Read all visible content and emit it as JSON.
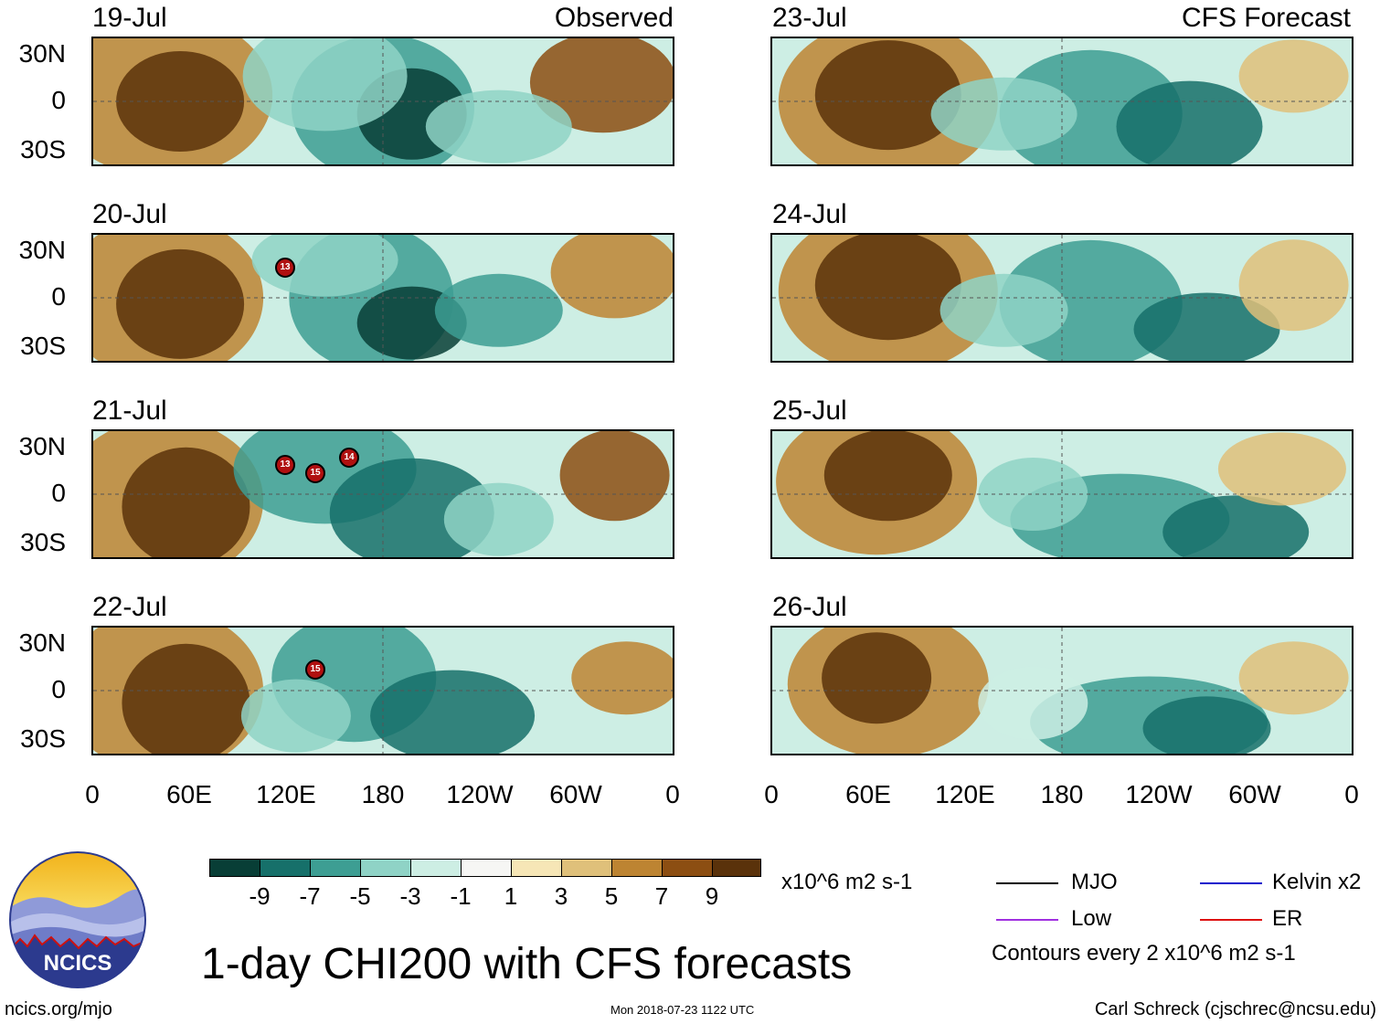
{
  "headers": {
    "left": "Observed",
    "right": "CFS Forecast"
  },
  "observed_panels": [
    {
      "date": "19-Jul"
    },
    {
      "date": "20-Jul",
      "storms": [
        "13"
      ]
    },
    {
      "date": "21-Jul",
      "storms": [
        "13",
        "15",
        "14"
      ]
    },
    {
      "date": "22-Jul",
      "storms": [
        "15"
      ]
    }
  ],
  "forecast_panels": [
    {
      "date": "23-Jul"
    },
    {
      "date": "24-Jul"
    },
    {
      "date": "25-Jul"
    },
    {
      "date": "26-Jul"
    }
  ],
  "lat_labels": [
    "30N",
    "0",
    "30S"
  ],
  "lon_labels": [
    "0",
    "60E",
    "120E",
    "180",
    "120W",
    "60W",
    "0"
  ],
  "colorbar": {
    "colors": [
      "#083e36",
      "#16706a",
      "#3d9e93",
      "#8fd3c6",
      "#cdeee4",
      "#f6f6f4",
      "#f6e6b6",
      "#dfc07a",
      "#bd8432",
      "#8c4e12",
      "#5a320b"
    ],
    "labels": [
      "-9",
      "-7",
      "-5",
      "-3",
      "-1",
      "1",
      "3",
      "5",
      "7",
      "9"
    ],
    "units": "x10^6 m2 s-1"
  },
  "legend": {
    "items": [
      {
        "label": "MJO",
        "color": "#000000"
      },
      {
        "label": "Kelvin x2",
        "color": "#1010cc"
      },
      {
        "label": "Low",
        "color": "#a030e0"
      },
      {
        "label": "ER",
        "color": "#dd1010"
      }
    ],
    "note": "Contours every 2 x10^6 m2 s-1"
  },
  "logo_text": "NCICS",
  "title": "1-day CHI200 with CFS forecasts",
  "footer": {
    "left": "ncics.org/mjo",
    "center": "Mon 2018-07-23 1122 UTC",
    "right": "Carl Schreck (cjschrec@ncsu.edu)"
  }
}
